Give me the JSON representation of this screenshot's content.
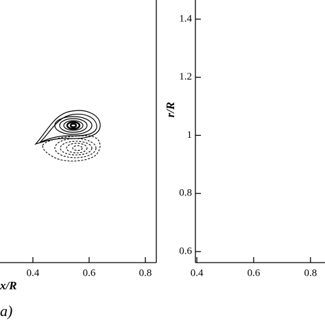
{
  "chart_data": [
    {
      "type": "contour",
      "xlabel": "x/R",
      "panel_label": "a)",
      "xlim": [
        0.283,
        0.839
      ],
      "xticks": [
        0.4,
        0.6,
        0.8
      ],
      "ylim": [
        0.562,
        1.466
      ]
    },
    {
      "type": "contour",
      "ylabel": "r/R",
      "xlim": [
        0.395,
        0.851
      ],
      "xticks": [
        0.4,
        0.6,
        0.8
      ],
      "ylim": [
        0.562,
        1.466
      ],
      "yticks": [
        0.6,
        0.8,
        1,
        1.2,
        1.4
      ]
    }
  ]
}
